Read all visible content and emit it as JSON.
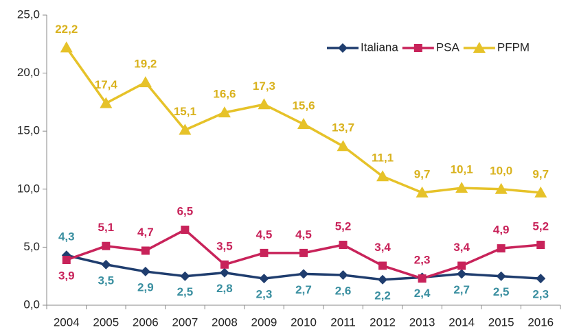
{
  "chart_data": {
    "type": "line",
    "categories": [
      "2004",
      "2005",
      "2006",
      "2007",
      "2008",
      "2009",
      "2010",
      "2011",
      "2012",
      "2013",
      "2014",
      "2015",
      "2016"
    ],
    "series": [
      {
        "name": "Italiana",
        "color": "#1f3d6e",
        "label_color": "#3a8fa0",
        "marker": "diamond",
        "values": [
          4.3,
          3.5,
          2.9,
          2.5,
          2.8,
          2.3,
          2.7,
          2.6,
          2.2,
          2.4,
          2.7,
          2.5,
          2.3
        ],
        "value_labels": [
          "4,3",
          "3,5",
          "2,9",
          "2,5",
          "2,8",
          "2,3",
          "2,7",
          "2,6",
          "2,2",
          "2,4",
          "2,7",
          "2,5",
          "2,3"
        ]
      },
      {
        "name": "PSA",
        "color": "#c8235a",
        "label_color": "#c8235a",
        "marker": "square",
        "values": [
          3.9,
          5.1,
          4.7,
          6.5,
          3.5,
          4.5,
          4.5,
          5.2,
          3.4,
          2.3,
          3.4,
          4.9,
          5.2
        ],
        "value_labels": [
          "3,9",
          "5,1",
          "4,7",
          "6,5",
          "3,5",
          "4,5",
          "4,5",
          "5,2",
          "3,4",
          "2,3",
          "3,4",
          "4,9",
          "5,2"
        ]
      },
      {
        "name": "PFPM",
        "color": "#e6c229",
        "label_color": "#d9b21e",
        "marker": "triangle",
        "values": [
          22.2,
          17.4,
          19.2,
          15.1,
          16.6,
          17.3,
          15.6,
          13.7,
          11.1,
          9.7,
          10.1,
          10.0,
          9.7
        ],
        "value_labels": [
          "22,2",
          "17,4",
          "19,2",
          "15,1",
          "16,6",
          "17,3",
          "15,6",
          "13,7",
          "11,1",
          "9,7",
          "10,1",
          "10,0",
          "9,7"
        ]
      }
    ],
    "ylim": [
      0,
      25
    ],
    "yticks": [
      {
        "value": 0,
        "label": "0,0"
      },
      {
        "value": 5,
        "label": "5,0"
      },
      {
        "value": 10,
        "label": "10,0"
      },
      {
        "value": 15,
        "label": "15,0"
      },
      {
        "value": 20,
        "label": "20,0"
      },
      {
        "value": 25,
        "label": "25,0"
      }
    ],
    "grid": false,
    "legend": "top-right"
  }
}
